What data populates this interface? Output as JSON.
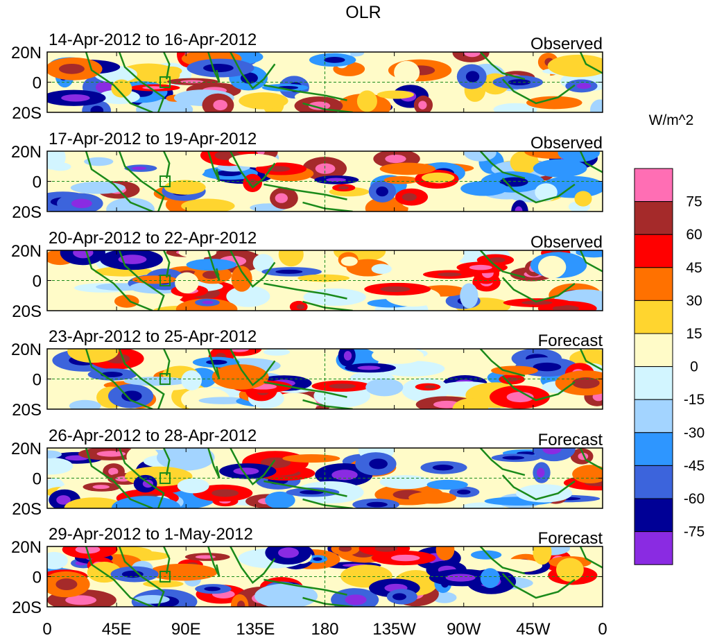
{
  "chart_data": {
    "type": "heatmap",
    "title": "OLR",
    "units": "W/m^2",
    "x_ticks": [
      "0",
      "45E",
      "90E",
      "135E",
      "180",
      "135W",
      "90W",
      "45W",
      "0"
    ],
    "y_ticks": [
      "20N",
      "0",
      "20S"
    ],
    "colorbar": {
      "levels": [
        "75",
        "60",
        "45",
        "30",
        "15",
        "0",
        "-15",
        "-30",
        "-45",
        "-60",
        "-75"
      ],
      "colors": [
        "#ff6eb4",
        "#a52a2a",
        "#ff0000",
        "#ff7100",
        "#ffd52f",
        "#fffbc8",
        "#d2f5ff",
        "#a3d4ff",
        "#2e96ff",
        "#3c64dc",
        "#000096",
        "#8a2be2"
      ]
    },
    "panels": [
      {
        "period": "14-Apr-2012 to 16-Apr-2012",
        "kind": "Observed",
        "seed": 11
      },
      {
        "period": "17-Apr-2012 to 19-Apr-2012",
        "kind": "Observed",
        "seed": 23
      },
      {
        "period": "20-Apr-2012 to 22-Apr-2012",
        "kind": "Observed",
        "seed": 37
      },
      {
        "period": "23-Apr-2012 to 25-Apr-2012",
        "kind": "Forecast",
        "seed": 41
      },
      {
        "period": "26-Apr-2012 to 28-Apr-2012",
        "kind": "Forecast",
        "seed": 53
      },
      {
        "period": "29-Apr-2012 to 1-May-2012",
        "kind": "Forecast",
        "seed": 67
      }
    ]
  }
}
